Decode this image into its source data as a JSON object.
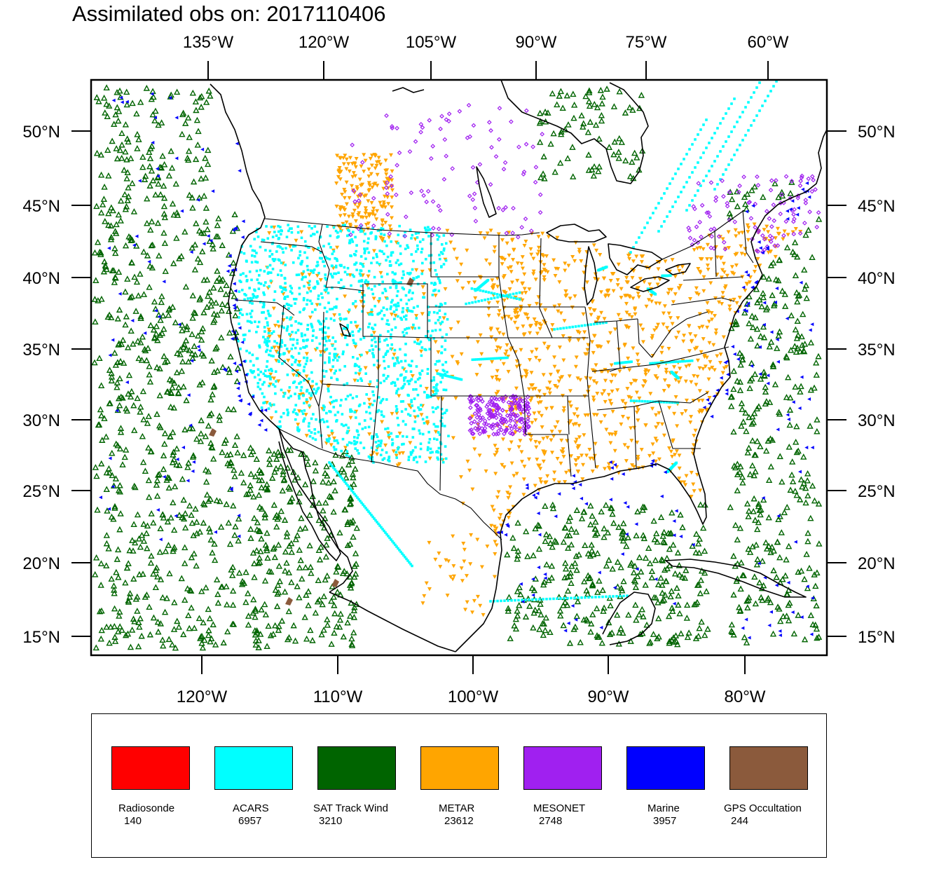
{
  "title": "Assimilated obs on: 2017110406",
  "axes": {
    "top": [
      "135°W",
      "120°W",
      "105°W",
      "90°W",
      "75°W",
      "60°W"
    ],
    "bottom": [
      "120°W",
      "110°W",
      "100°W",
      "90°W",
      "80°W"
    ],
    "left": [
      "50°N",
      "45°N",
      "40°N",
      "35°N",
      "30°N",
      "25°N",
      "20°N",
      "15°N"
    ],
    "right": [
      "50°N",
      "45°N",
      "40°N",
      "35°N",
      "30°N",
      "25°N",
      "20°N",
      "15°N"
    ]
  },
  "legend": [
    {
      "name": "Radiosonde",
      "count": "140",
      "color": "#ff0000"
    },
    {
      "name": "ACARS",
      "count": "6957",
      "color": "#00ffff"
    },
    {
      "name": "SAT Track Wind",
      "count": "3210",
      "color": "#006400"
    },
    {
      "name": "METAR",
      "count": "23612",
      "color": "#ffa500"
    },
    {
      "name": "MESONET",
      "count": "2748",
      "color": "#a020f0"
    },
    {
      "name": "Marine",
      "count": "3957",
      "color": "#0000ff"
    },
    {
      "name": "GPS Occultation",
      "count": "244",
      "color": "#8b5a3c"
    }
  ]
}
